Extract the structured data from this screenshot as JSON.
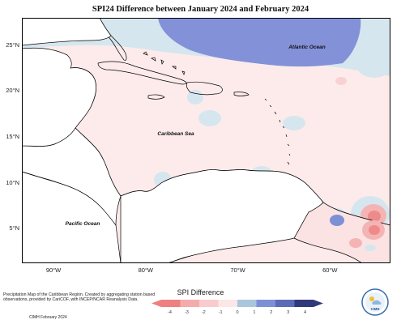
{
  "title": "SPI24 Difference between January 2024 and February 2024",
  "map": {
    "lat_ticks": [
      {
        "label": "25°N",
        "lat": 25
      },
      {
        "label": "20°N",
        "lat": 20
      },
      {
        "label": "15°N",
        "lat": 15
      },
      {
        "label": "10°N",
        "lat": 10
      },
      {
        "label": "5°N",
        "lat": 5
      }
    ],
    "lon_ticks": [
      {
        "label": "90°W",
        "lon": -90
      },
      {
        "label": "80°W",
        "lon": -80
      },
      {
        "label": "70°W",
        "lon": -70
      },
      {
        "label": "60°W",
        "lon": -60
      }
    ],
    "labels": {
      "atlantic": "Atlantic Ocean",
      "caribbean": "Caribbean Sea",
      "pacific": "Pacific Ocean"
    }
  },
  "legend": {
    "title": "SPI Difference",
    "ticks": [
      "-4",
      "-3",
      "-2",
      "-1",
      "0",
      "1",
      "2",
      "3",
      "4"
    ],
    "colors": [
      "#ef8080",
      "#f4abab",
      "#f8cccc",
      "#fde6e6",
      "#d5e6ee",
      "#a9c6dc",
      "#7d90d6",
      "#5b6bb5",
      "#303a7a"
    ]
  },
  "footer": {
    "description": "Precipitation Map of the Caribbean Region. Created by aggregating station based observations, provided by CariCOF, with INCEP/NCAR Reanalysis Data.",
    "credit": "CIMH February 2024",
    "logo_text": "CIMH"
  }
}
